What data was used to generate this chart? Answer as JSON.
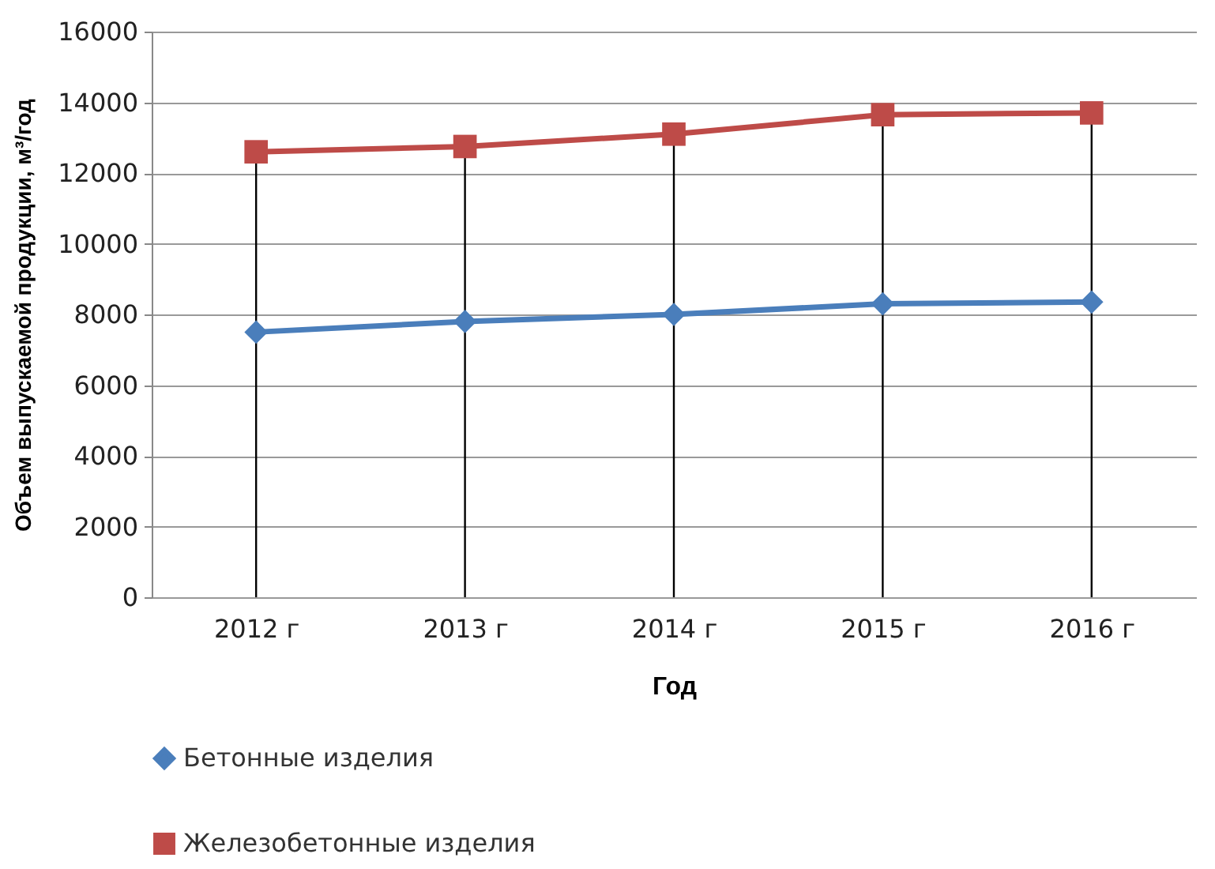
{
  "chart_data": {
    "type": "line",
    "xlabel": "Год",
    "ylabel": "Объем  выпускаемой продукции, м³/год",
    "categories": [
      "2012 г",
      "2013 г",
      "2014 г",
      "2015 г",
      "2016 г"
    ],
    "series": [
      {
        "name": "Бетонные изделия",
        "color": "#4a7ebb",
        "marker": "diamond",
        "values": [
          7500,
          7800,
          8000,
          8300,
          8350
        ]
      },
      {
        "name": "Железобетонные изделия",
        "color": "#be4b48",
        "marker": "square",
        "values": [
          12600,
          12750,
          13100,
          13650,
          13700
        ]
      }
    ],
    "ylim": [
      0,
      16000
    ],
    "yticks": [
      0,
      2000,
      4000,
      6000,
      8000,
      10000,
      12000,
      14000,
      16000
    ],
    "grid": true,
    "legend": "bottom",
    "line_style": "solid"
  }
}
